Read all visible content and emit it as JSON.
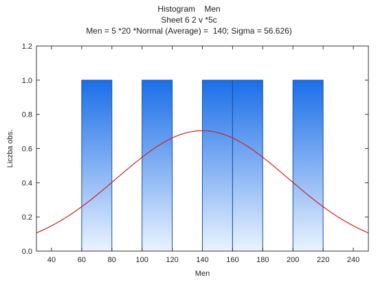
{
  "chart_data": {
    "type": "bar",
    "title": "Histogram    Men",
    "subtitle": "Sheet 6 2 v *5c",
    "fit_label": "Men = 5 *20 *Normal (Average) =  140; Sigma = 56.626)",
    "xlabel": "Men",
    "ylabel": "Liczba obs.",
    "xlim": [
      30,
      250
    ],
    "ylim": [
      0,
      1.2
    ],
    "x_ticks": [
      "40",
      "60",
      "80",
      "100",
      "120",
      "140",
      "160",
      "180",
      "200",
      "220",
      "240"
    ],
    "y_ticks": [
      "0.0",
      "0.2",
      "0.4",
      "0.6",
      "0.8",
      "1.0",
      "1.2"
    ],
    "bins": [
      {
        "from": 60,
        "to": 80,
        "count": 1
      },
      {
        "from": 100,
        "to": 120,
        "count": 1
      },
      {
        "from": 140,
        "to": 160,
        "count": 1
      },
      {
        "from": 160,
        "to": 180,
        "count": 1
      },
      {
        "from": 200,
        "to": 220,
        "count": 1
      }
    ],
    "normal_fit": {
      "n": 5,
      "bin_width": 20,
      "mean": 140,
      "sigma": 56.626
    },
    "grid": false,
    "colors": {
      "bar_top": "#1a6ee8",
      "bar_bottom": "#eaf3ff",
      "bar_edge": "#1a4fa8",
      "curve": "#cc2222"
    }
  }
}
